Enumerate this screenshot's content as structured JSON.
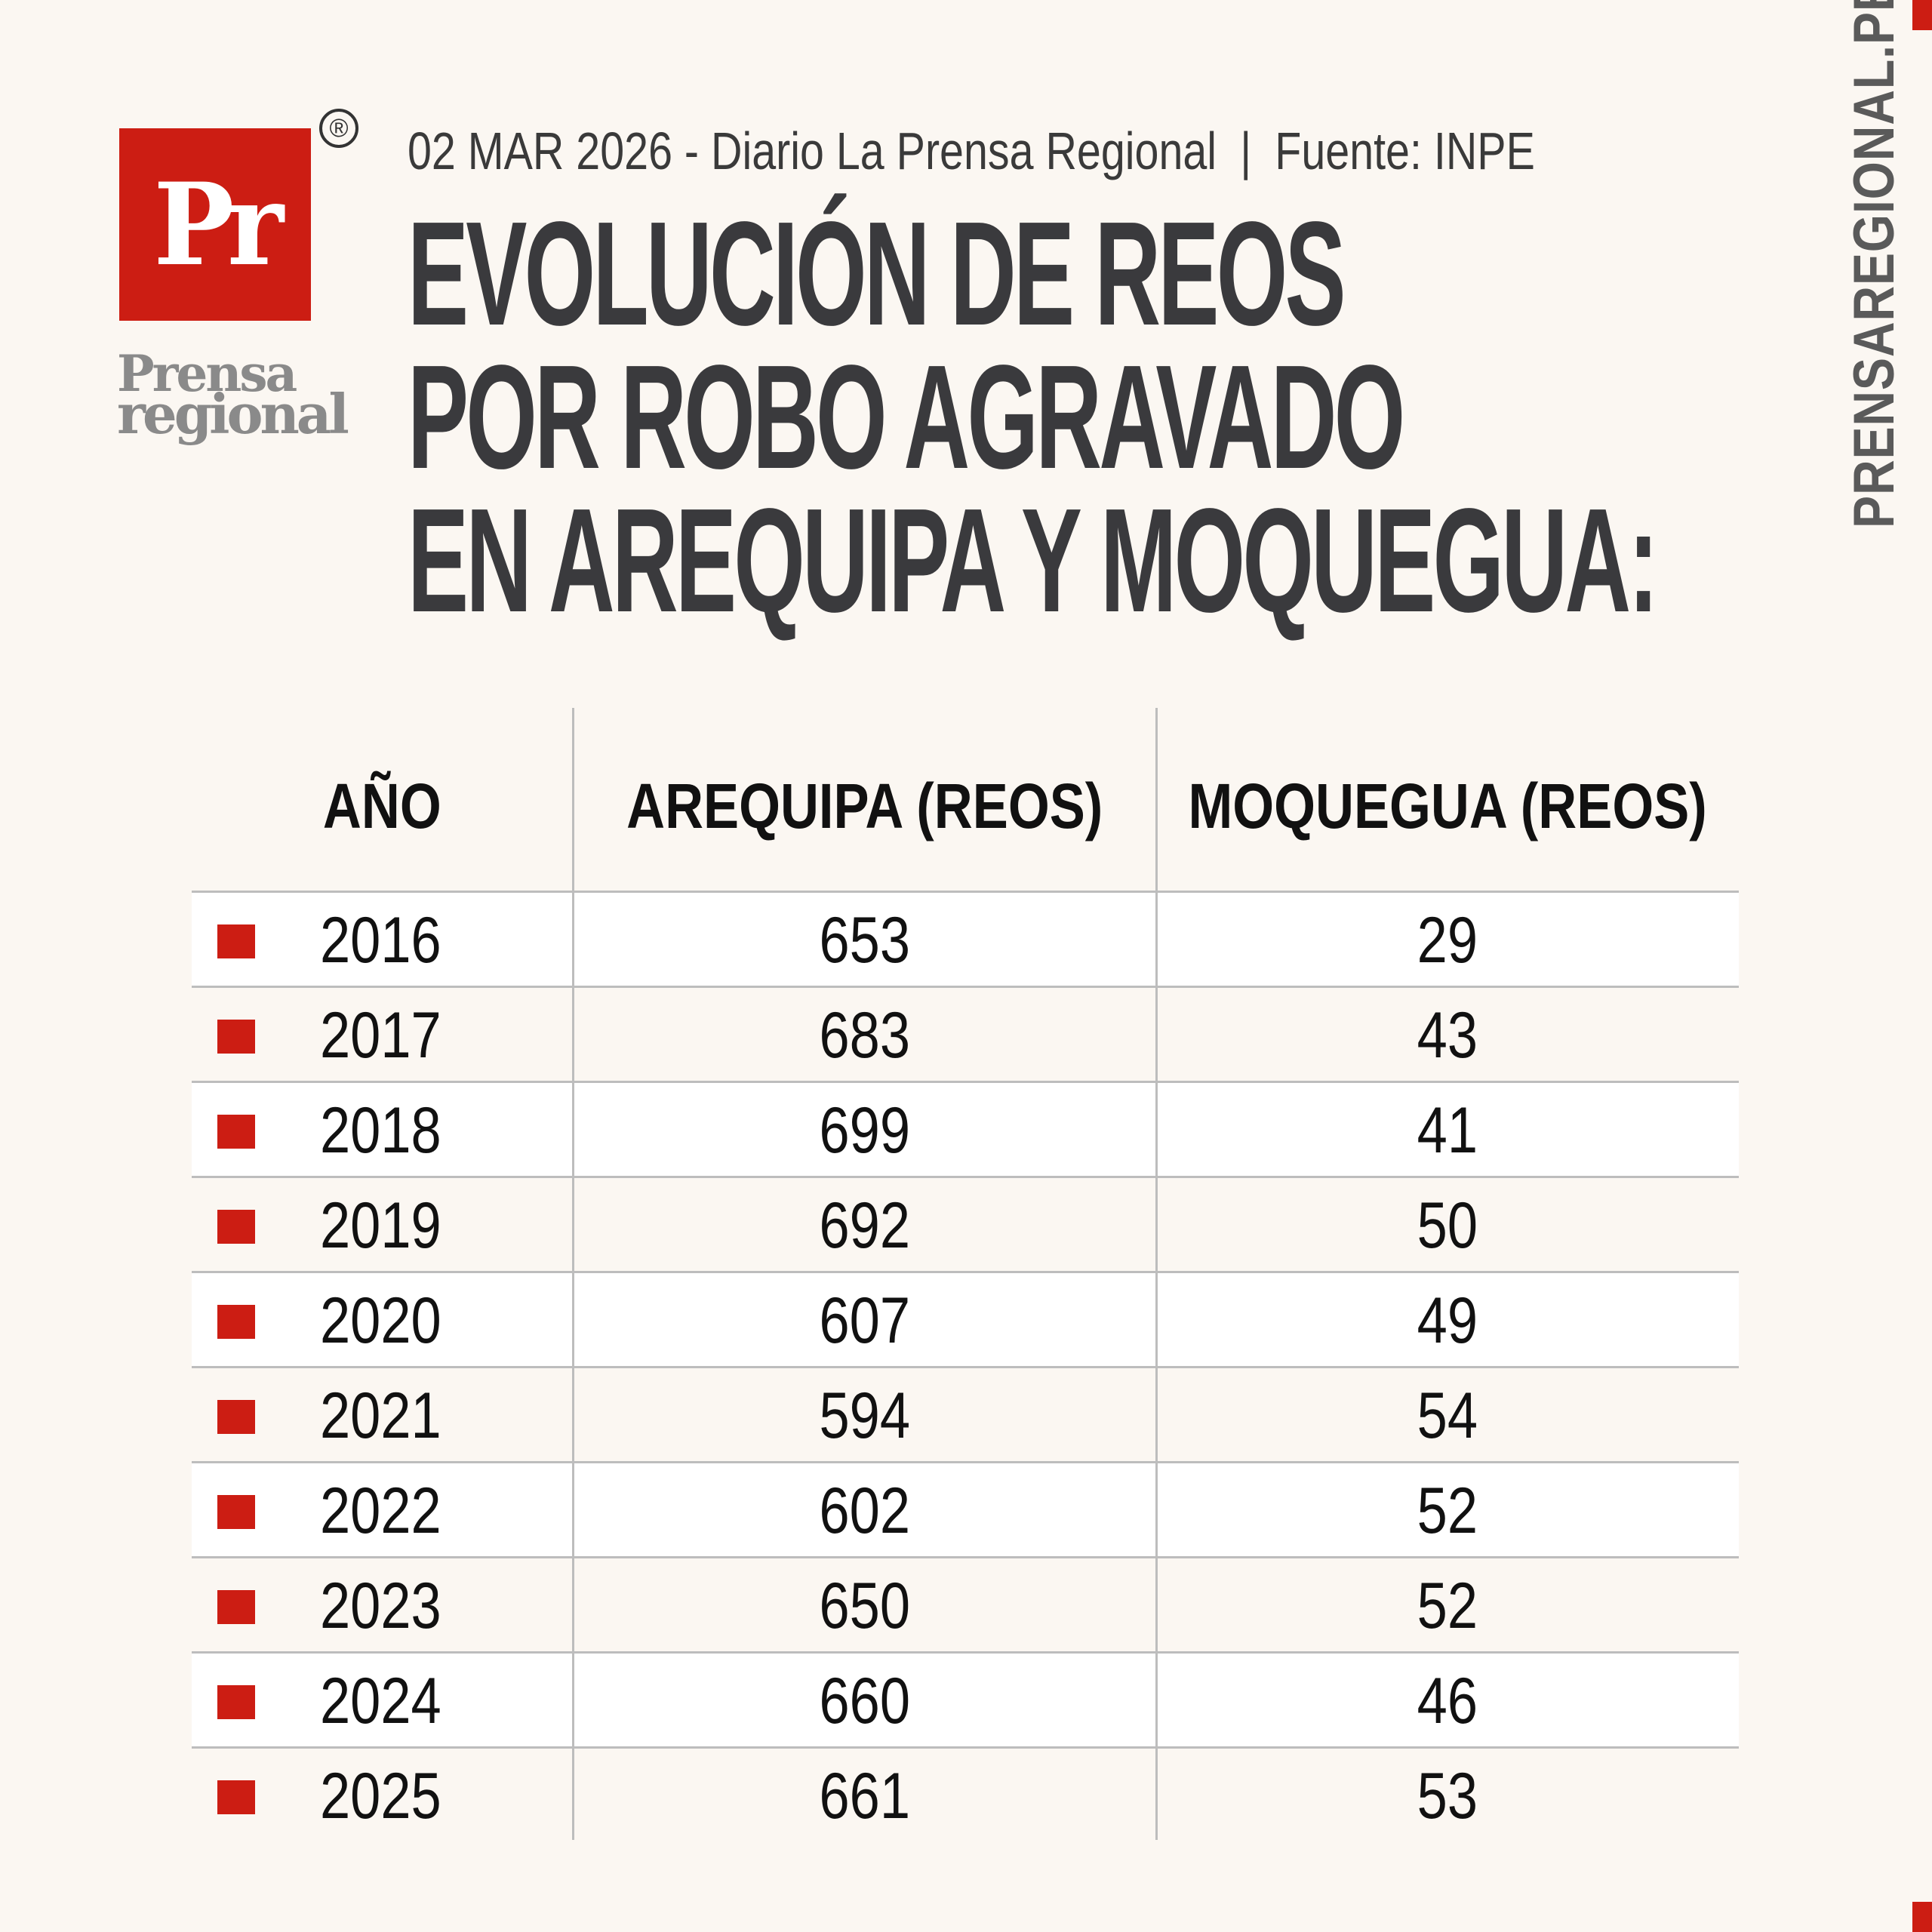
{
  "brand": {
    "logo_text": "Pr",
    "registered_mark": "®",
    "name_line1": "Prensa",
    "name_line2": "regional",
    "side_text": "PRENSAREGIONAL.PE",
    "accent_color": "#cc1d13"
  },
  "header": {
    "meta_left": "02 MAR 2026 - Diario La Prensa Regional",
    "meta_sep": "|",
    "meta_right": "Fuente: INPE",
    "title_lines": [
      "EVOLUCIÓN DE REOS",
      "POR ROBO AGRAVADO",
      "EN AREQUIPA Y MOQUEGUA:"
    ]
  },
  "chart_data": {
    "type": "table",
    "title": "EVOLUCIÓN DE REOS POR ROBO AGRAVADO EN AREQUIPA Y MOQUEGUA:",
    "columns": [
      "AÑO",
      "AREQUIPA (REOS)",
      "MOQUEGUA (REOS)"
    ],
    "rows": [
      [
        "2016",
        "653",
        "29"
      ],
      [
        "2017",
        "683",
        "43"
      ],
      [
        "2018",
        "699",
        "41"
      ],
      [
        "2019",
        "692",
        "50"
      ],
      [
        "2020",
        "607",
        "49"
      ],
      [
        "2021",
        "594",
        "54"
      ],
      [
        "2022",
        "602",
        "52"
      ],
      [
        "2023",
        "650",
        "52"
      ],
      [
        "2024",
        "660",
        "46"
      ],
      [
        "2025",
        "661",
        "53"
      ]
    ]
  }
}
